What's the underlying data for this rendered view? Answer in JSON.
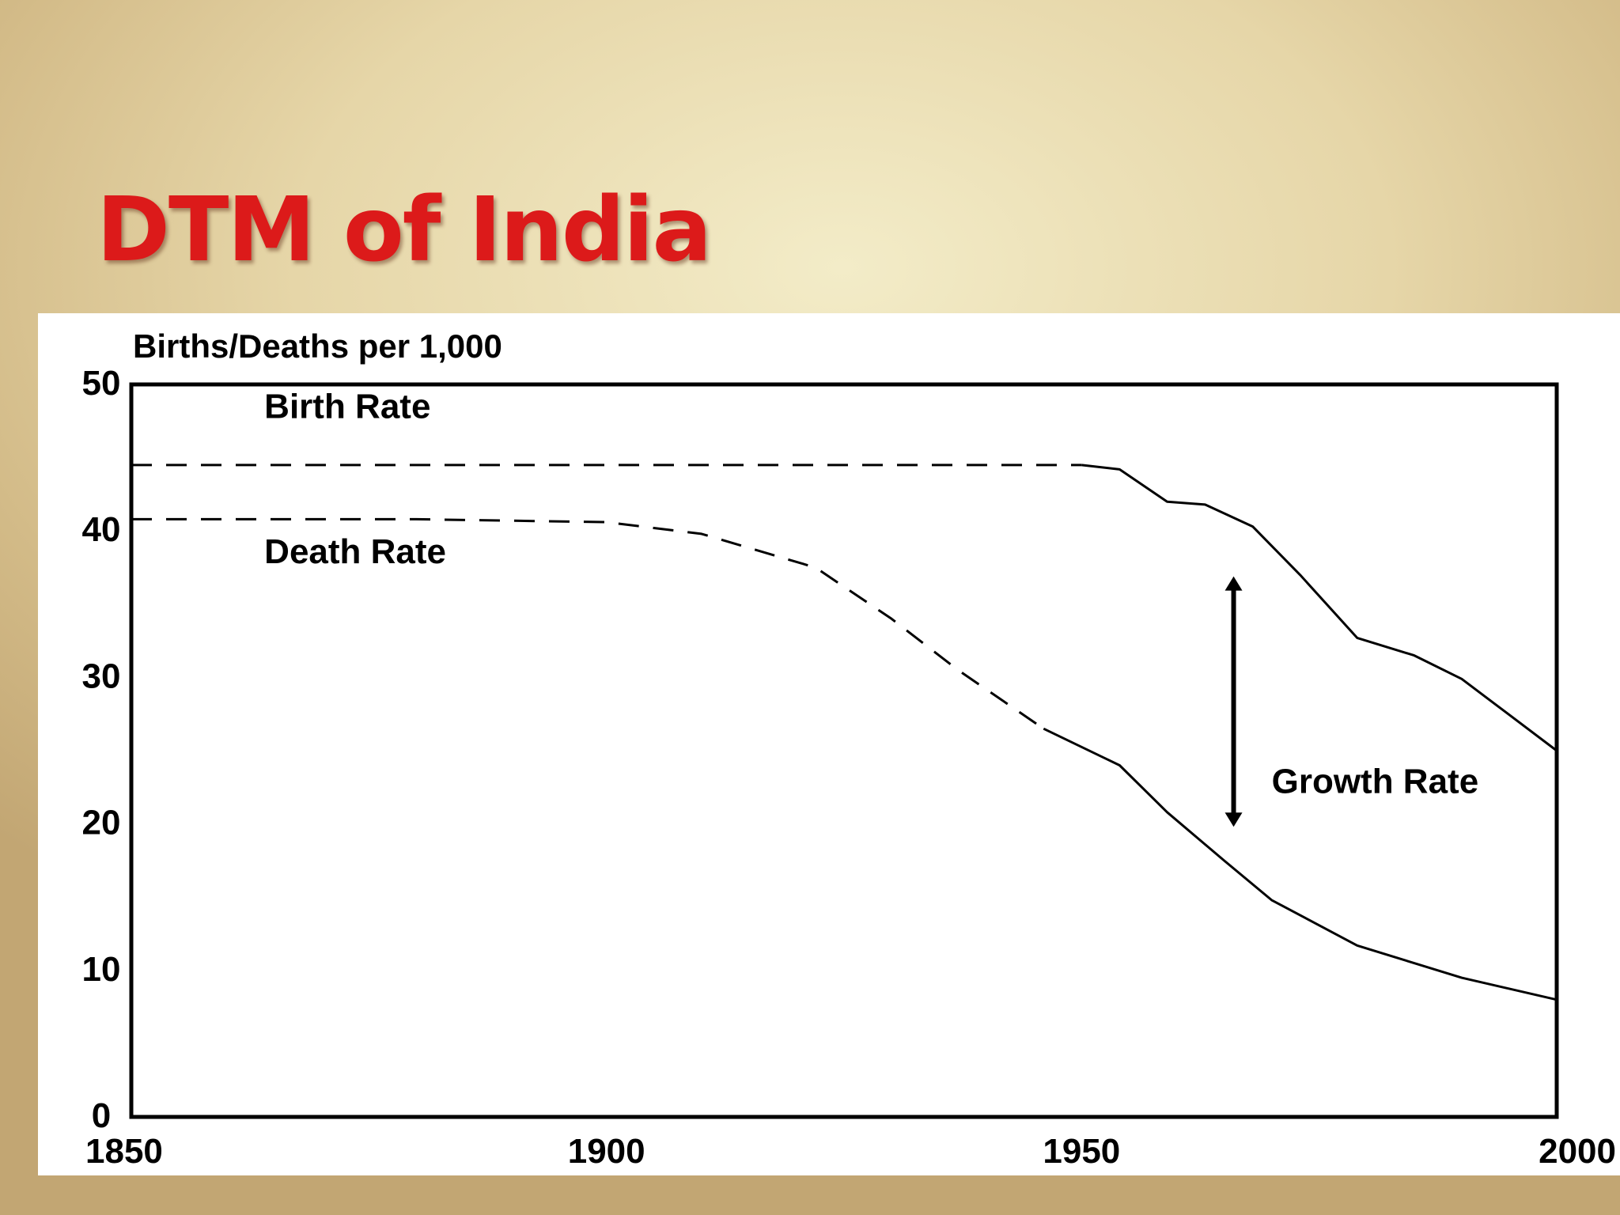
{
  "slide": {
    "title": "DTM of India",
    "colors": {
      "title": "#dc1a1a",
      "panel": "#ffffff",
      "line": "#000000"
    }
  },
  "chart_data": {
    "type": "line",
    "title": "",
    "ylabel": "Births/Deaths per 1,000",
    "xlabel": "",
    "xlim": [
      1850,
      2000
    ],
    "ylim": [
      0,
      50
    ],
    "x_ticks": [
      1850,
      1900,
      1950,
      2000
    ],
    "y_ticks": [
      0,
      10,
      20,
      30,
      40,
      50
    ],
    "x_tick_labels": [
      "1850",
      "1900",
      "1950",
      "2000"
    ],
    "y_tick_labels": [
      "0",
      "10",
      "20",
      "30",
      "40",
      "50"
    ],
    "grid": false,
    "series": [
      {
        "name": "Birth Rate",
        "dashed_until": 1950,
        "x": [
          1850,
          1900,
          1950,
          1954,
          1959,
          1963,
          1968,
          1973,
          1979,
          1985,
          1990,
          2000
        ],
        "y": [
          44.5,
          44.5,
          44.5,
          44.2,
          42.0,
          41.8,
          40.3,
          37.0,
          32.7,
          31.5,
          29.9,
          25.0
        ]
      },
      {
        "name": "Death Rate",
        "dashed_until": 1946,
        "x": [
          1850,
          1880,
          1900,
          1910,
          1922,
          1930,
          1937,
          1946,
          1954,
          1959,
          1965,
          1970,
          1979,
          1990,
          2000
        ],
        "y": [
          40.8,
          40.8,
          40.6,
          39.8,
          37.5,
          34.0,
          30.5,
          26.5,
          24.0,
          20.8,
          17.5,
          14.8,
          11.7,
          9.5,
          8.0
        ]
      }
    ],
    "annotations": [
      {
        "type": "label",
        "text": "Birth Rate",
        "x": 1864,
        "y": 47.7
      },
      {
        "type": "label",
        "text": "Death Rate",
        "x": 1864,
        "y": 37.8
      },
      {
        "type": "double_arrow",
        "x": 1966,
        "y_from": 36.9,
        "y_to": 19.8
      },
      {
        "type": "label",
        "text": "Growth Rate",
        "x": 1970,
        "y": 22.1
      }
    ]
  }
}
